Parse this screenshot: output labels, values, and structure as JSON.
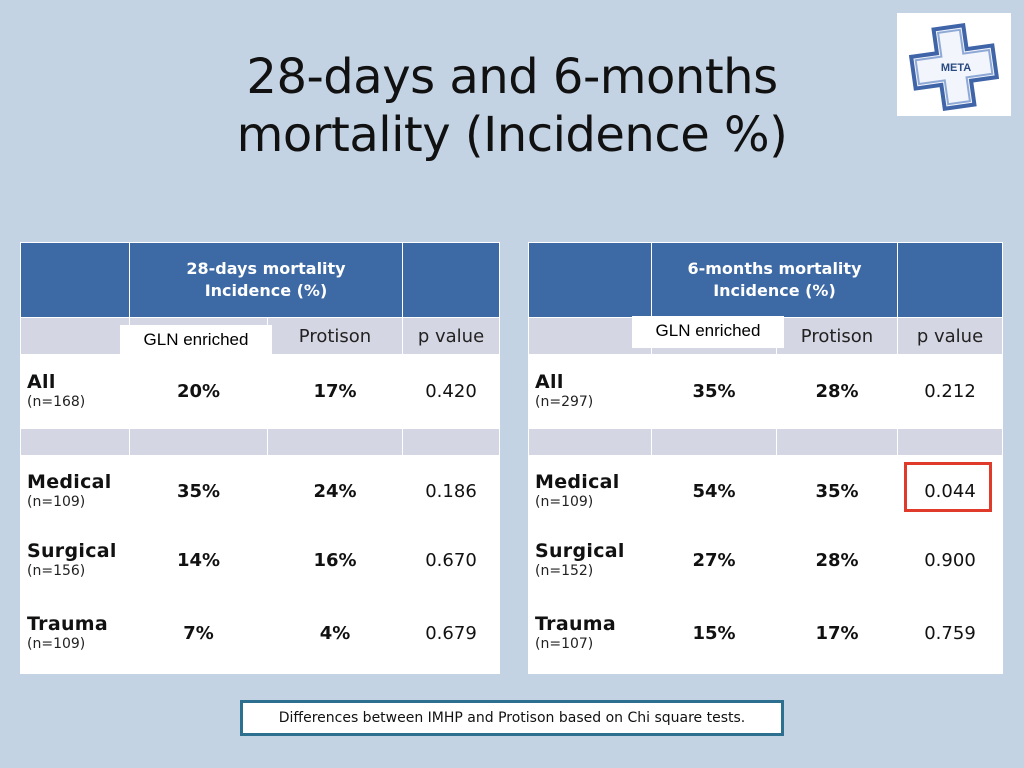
{
  "title_line1": "28-days and 6-months",
  "title_line2": "mortality (Incidence %)",
  "logo_text": "META",
  "highlight_color": "#e03a2a",
  "header_color": "#3d69a5",
  "left_table": {
    "header": "28-days mortality Incidence (%)",
    "gln_label": "GLN enriched",
    "col_protison": "Protison",
    "col_pvalue": "p value",
    "rows": [
      {
        "name": "All",
        "n": "(n=168)",
        "gln": "20%",
        "protison": "17%",
        "p": "0.420"
      },
      {
        "name": "Medical",
        "n": "(n=109)",
        "gln": "35%",
        "protison": "24%",
        "p": "0.186"
      },
      {
        "name": "Surgical",
        "n": "(n=156)",
        "gln": "14%",
        "protison": "16%",
        "p": "0.670"
      },
      {
        "name": "Trauma",
        "n": "(n=109)",
        "gln": "7%",
        "protison": "4%",
        "p": "0.679"
      }
    ]
  },
  "right_table": {
    "header": "6-months mortality Incidence (%)",
    "gln_label": "GLN enriched",
    "col_protison": "Protison",
    "col_pvalue": "p value",
    "rows": [
      {
        "name": "All",
        "n": "(n=297)",
        "gln": "35%",
        "protison": "28%",
        "p": "0.212"
      },
      {
        "name": "Medical",
        "n": "(n=109)",
        "gln": "54%",
        "protison": "35%",
        "p": "0.044"
      },
      {
        "name": "Surgical",
        "n": "(n=152)",
        "gln": "27%",
        "protison": "28%",
        "p": "0.900"
      },
      {
        "name": "Trauma",
        "n": "(n=107)",
        "gln": "15%",
        "protison": "17%",
        "p": "0.759"
      }
    ]
  },
  "footnote": "Differences between IMHP and Protison based on Chi square tests."
}
